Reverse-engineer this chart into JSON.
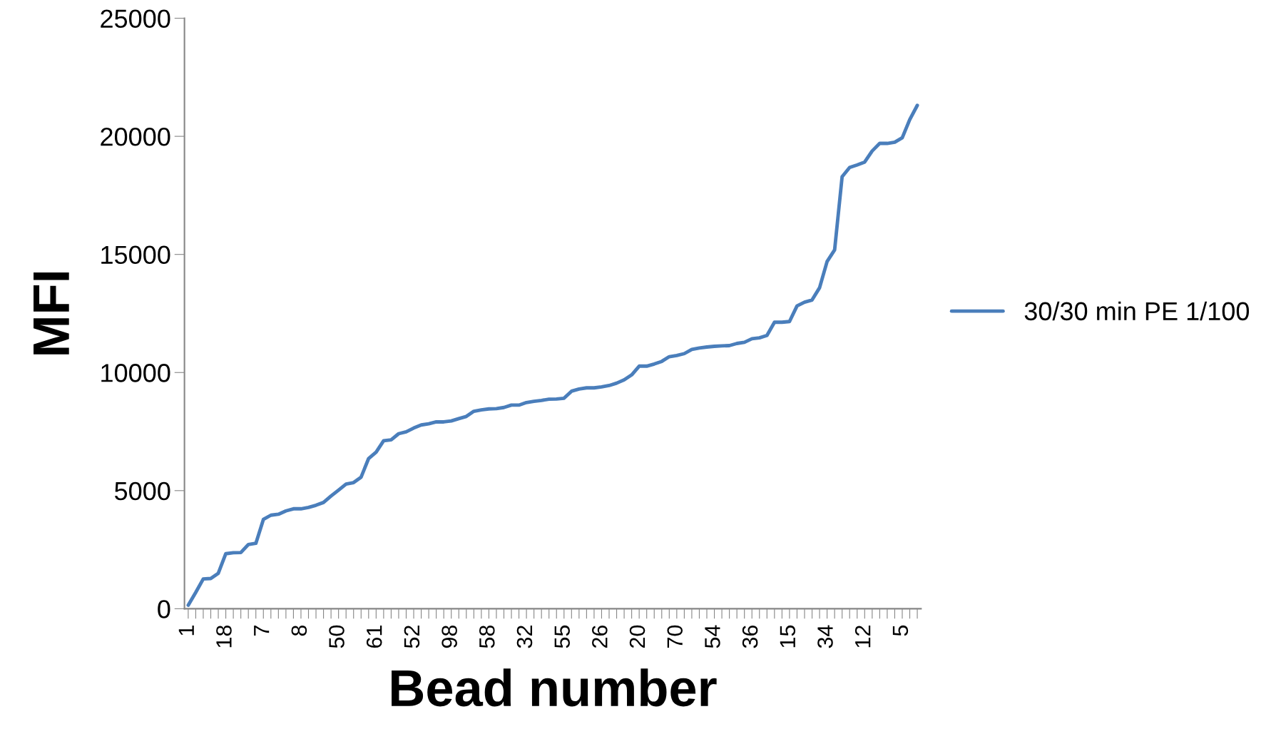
{
  "chart_data": {
    "type": "line",
    "xlabel": "Bead number",
    "ylabel": "MFI",
    "categories": [
      "1",
      null,
      null,
      null,
      null,
      "18",
      null,
      null,
      null,
      null,
      "7",
      null,
      null,
      null,
      null,
      "8",
      null,
      null,
      null,
      null,
      "50",
      null,
      null,
      null,
      null,
      "61",
      null,
      null,
      null,
      null,
      "52",
      null,
      null,
      null,
      null,
      "98",
      null,
      null,
      null,
      null,
      "58",
      null,
      null,
      null,
      null,
      "32",
      null,
      null,
      null,
      null,
      "55",
      null,
      null,
      null,
      null,
      "26",
      null,
      null,
      null,
      null,
      "20",
      null,
      null,
      null,
      null,
      "70",
      null,
      null,
      null,
      null,
      "54",
      null,
      null,
      null,
      null,
      "36",
      null,
      null,
      null,
      null,
      "15",
      null,
      null,
      null,
      null,
      "34",
      null,
      null,
      null,
      null,
      "12",
      null,
      null,
      null,
      null,
      "5",
      null,
      null
    ],
    "series": [
      {
        "name": "30/30 min PE 1/100",
        "color": "#4a7ebb",
        "values": [
          150,
          690,
          1260,
          1280,
          1500,
          2330,
          2370,
          2380,
          2720,
          2770,
          3780,
          3960,
          4000,
          4140,
          4230,
          4230,
          4290,
          4380,
          4500,
          4770,
          5020,
          5280,
          5340,
          5570,
          6360,
          6630,
          7110,
          7150,
          7410,
          7490,
          7650,
          7780,
          7830,
          7910,
          7910,
          7950,
          8050,
          8140,
          8360,
          8420,
          8460,
          8470,
          8520,
          8620,
          8620,
          8730,
          8780,
          8820,
          8870,
          8880,
          8910,
          9210,
          9300,
          9350,
          9350,
          9390,
          9450,
          9550,
          9690,
          9900,
          10270,
          10270,
          10360,
          10470,
          10670,
          10720,
          10800,
          10980,
          11040,
          11080,
          11110,
          11130,
          11140,
          11230,
          11280,
          11430,
          11470,
          11570,
          12130,
          12130,
          12160,
          12820,
          12980,
          13070,
          13590,
          14700,
          15190,
          18290,
          18680,
          18790,
          18910,
          19380,
          19700,
          19700,
          19750,
          19940,
          20710,
          21310
        ]
      }
    ],
    "ylim": [
      0,
      25000
    ],
    "yticks": [
      0,
      5000,
      10000,
      15000,
      20000,
      25000
    ],
    "grid": false,
    "legend": "right",
    "marker": "none",
    "line_style": "solid"
  }
}
